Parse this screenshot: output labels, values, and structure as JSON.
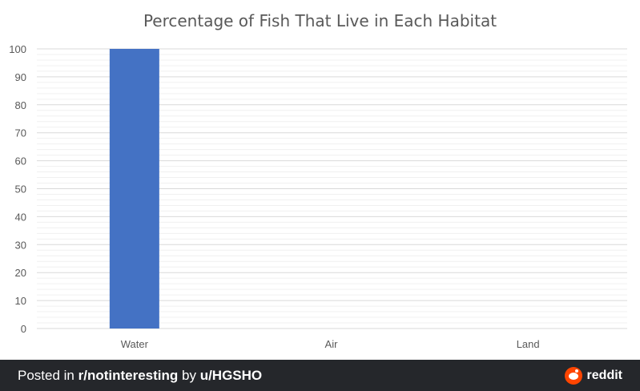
{
  "chart_data": {
    "type": "bar",
    "title": "Percentage of Fish That Live in Each Habitat",
    "categories": [
      "Water",
      "Air",
      "Land"
    ],
    "values": [
      100,
      0,
      0
    ],
    "ylim": [
      0,
      100
    ],
    "yticks": [
      "0",
      "10",
      "20",
      "30",
      "40",
      "50",
      "60",
      "70",
      "80",
      "90",
      "100"
    ],
    "xlabel": "",
    "ylabel": "",
    "grid": true,
    "minor_grid": true,
    "bar_color": "#4472c4"
  },
  "footer": {
    "posted_in_prefix": "Posted in ",
    "subreddit": "r/notinteresting",
    "by_text": " by ",
    "user": "u/HGSHO",
    "brand": "reddit"
  },
  "colors": {
    "footer_bg": "#25272b",
    "reddit_orange": "#ff4500",
    "major_grid": "#d9d9d9",
    "minor_grid": "#f0f0f0",
    "axis_text": "#595959"
  },
  "icons": {
    "brand_logo": "reddit-snoo-icon"
  }
}
